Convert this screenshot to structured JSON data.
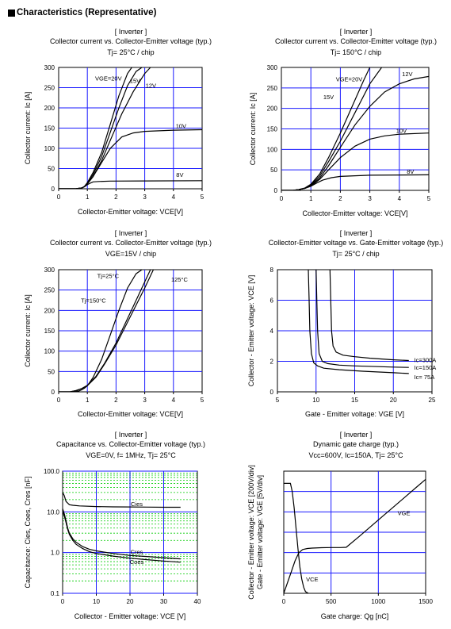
{
  "page_title": "Characteristics (Representative)",
  "chart_data": [
    {
      "type": "line",
      "title_lines": [
        "[ Inverter ]",
        "Collector current vs. Collector-Emitter voltage (typ.)",
        "Tj= 25°C / chip"
      ],
      "xlabel": "Collector-Emitter voltage: VCE[V]",
      "ylabel": "Collector current: Ic [A]",
      "xlim": [
        0,
        5
      ],
      "ylim": [
        0,
        300
      ],
      "xticks": [
        "0",
        "1",
        "2",
        "3",
        "4",
        "5"
      ],
      "yticks": [
        "0",
        "50",
        "100",
        "150",
        "200",
        "250",
        "300"
      ],
      "grid": true,
      "series": [
        {
          "name": "VGE=20V",
          "x": [
            0,
            0.6,
            0.8,
            0.9,
            1.0,
            1.2,
            1.5,
            1.8,
            2.1,
            2.4,
            2.55
          ],
          "y": [
            0,
            0,
            2,
            6,
            15,
            40,
            90,
            160,
            230,
            285,
            300
          ]
        },
        {
          "name": "15V",
          "x": [
            0,
            0.6,
            0.8,
            0.9,
            1.0,
            1.2,
            1.5,
            1.8,
            2.1,
            2.4,
            2.7,
            2.9
          ],
          "y": [
            0,
            0,
            2,
            5,
            13,
            35,
            80,
            140,
            200,
            255,
            290,
            300
          ]
        },
        {
          "name": "12V",
          "x": [
            0,
            0.6,
            0.8,
            0.9,
            1.0,
            1.2,
            1.5,
            1.8,
            2.2,
            2.6,
            3.0,
            3.2
          ],
          "y": [
            0,
            0,
            2,
            5,
            12,
            30,
            70,
            120,
            185,
            240,
            285,
            300
          ]
        },
        {
          "name": "10V",
          "x": [
            0,
            0.6,
            0.8,
            0.9,
            1.0,
            1.2,
            1.5,
            1.8,
            2.2,
            2.6,
            3.0,
            4.0,
            5.0
          ],
          "y": [
            0,
            0,
            2,
            5,
            12,
            30,
            65,
            100,
            128,
            138,
            142,
            145,
            146
          ]
        },
        {
          "name": "8V",
          "x": [
            0,
            0.6,
            0.8,
            0.9,
            1.0,
            1.1,
            1.2,
            1.4,
            1.8,
            3.0,
            5.0
          ],
          "y": [
            0,
            0,
            2,
            5,
            10,
            14,
            17,
            18,
            19,
            19.5,
            20
          ]
        }
      ]
    },
    {
      "type": "line",
      "title_lines": [
        "[ Inverter ]",
        "Collector current vs. Collector-Emitter voltage (typ.)",
        "Tj= 150°C / chip"
      ],
      "xlabel": "Collector-Emitter voltage: VCE[V]",
      "ylabel": "Collector current: Ic [A]",
      "xlim": [
        0,
        5
      ],
      "ylim": [
        0,
        300
      ],
      "xticks": [
        "0",
        "1",
        "2",
        "3",
        "4",
        "5"
      ],
      "yticks": [
        "0",
        "50",
        "100",
        "150",
        "200",
        "250",
        "300"
      ],
      "grid": true,
      "series": [
        {
          "name": "VGE=20V",
          "x": [
            0,
            0.4,
            0.6,
            0.8,
            1.0,
            1.3,
            1.6,
            2.0,
            2.4,
            2.8,
            3.0
          ],
          "y": [
            0,
            0,
            2,
            6,
            15,
            40,
            80,
            140,
            205,
            270,
            300
          ]
        },
        {
          "name": "15V",
          "x": [
            0,
            0.4,
            0.6,
            0.8,
            1.0,
            1.3,
            1.6,
            2.0,
            2.5,
            3.0,
            3.4
          ],
          "y": [
            0,
            0,
            2,
            5,
            13,
            35,
            70,
            120,
            190,
            260,
            300
          ]
        },
        {
          "name": "12V",
          "x": [
            0,
            0.4,
            0.6,
            0.8,
            1.0,
            1.3,
            1.6,
            2.0,
            2.5,
            3.0,
            3.5,
            4.0,
            4.5,
            5.0
          ],
          "y": [
            0,
            0,
            2,
            5,
            12,
            30,
            60,
            105,
            160,
            205,
            240,
            260,
            272,
            278
          ]
        },
        {
          "name": "10V",
          "x": [
            0,
            0.4,
            0.6,
            0.8,
            1.0,
            1.3,
            1.6,
            2.0,
            2.5,
            3.0,
            3.5,
            4.0,
            5.0
          ],
          "y": [
            0,
            0,
            2,
            5,
            11,
            27,
            50,
            80,
            108,
            125,
            133,
            137,
            140
          ]
        },
        {
          "name": "8V",
          "x": [
            0,
            0.4,
            0.6,
            0.8,
            1.0,
            1.2,
            1.4,
            1.7,
            2.0,
            3.0,
            5.0
          ],
          "y": [
            0,
            0,
            2,
            5,
            10,
            18,
            25,
            31,
            34,
            37,
            38
          ]
        }
      ]
    },
    {
      "type": "line",
      "title_lines": [
        "[ Inverter ]",
        "Collector current vs. Collector-Emitter voltage (typ.)",
        "VGE=15V / chip"
      ],
      "xlabel": "Collector-Emitter voltage: VCE[V]",
      "ylabel": "Collector current: Ic [A]",
      "xlim": [
        0,
        5
      ],
      "ylim": [
        0,
        300
      ],
      "xticks": [
        "0",
        "1",
        "2",
        "3",
        "4",
        "5"
      ],
      "yticks": [
        "0",
        "50",
        "100",
        "150",
        "200",
        "250",
        "300"
      ],
      "grid": true,
      "series": [
        {
          "name": "Tj=25°C",
          "x": [
            0,
            0.5,
            0.7,
            0.8,
            0.9,
            1.0,
            1.2,
            1.5,
            1.8,
            2.1,
            2.4,
            2.7,
            2.9
          ],
          "y": [
            0,
            0,
            2,
            5,
            9,
            15,
            35,
            80,
            140,
            200,
            255,
            290,
            300
          ]
        },
        {
          "name": "125°C",
          "x": [
            0,
            0.4,
            0.6,
            0.8,
            1.0,
            1.3,
            1.6,
            2.0,
            2.4,
            2.8,
            3.2
          ],
          "y": [
            0,
            0,
            3,
            8,
            16,
            38,
            70,
            120,
            180,
            240,
            300
          ]
        },
        {
          "name": "Tj=150°C",
          "x": [
            0,
            0.4,
            0.6,
            0.8,
            1.0,
            1.3,
            1.6,
            2.0,
            2.5,
            3.0,
            3.3
          ],
          "y": [
            0,
            0,
            3,
            8,
            15,
            36,
            68,
            115,
            185,
            255,
            300
          ]
        }
      ]
    },
    {
      "type": "line",
      "title_lines": [
        "[ Inverter ]",
        "Collector-Emitter voltage  vs. Gate-Emitter voltage (typ.)",
        "Tj= 25°C / chip"
      ],
      "xlabel": "Gate - Emitter voltage: VGE [V]",
      "ylabel": "Collector - Emitter voltage: VCE [V]",
      "xlim": [
        5,
        25
      ],
      "ylim": [
        0,
        8
      ],
      "xticks": [
        "5",
        "10",
        "15",
        "20",
        "25"
      ],
      "yticks": [
        "0",
        "2",
        "4",
        "6",
        "8"
      ],
      "grid": true,
      "series": [
        {
          "name": "Ic=300A",
          "x": [
            11.8,
            11.9,
            12.0,
            12.2,
            12.6,
            13.5,
            15,
            17,
            20,
            22
          ],
          "y": [
            8,
            6,
            4,
            3,
            2.6,
            2.4,
            2.3,
            2.2,
            2.1,
            2.05
          ]
        },
        {
          "name": "Ic=150A",
          "x": [
            10.0,
            10.1,
            10.2,
            10.4,
            10.8,
            11.5,
            13,
            15,
            18,
            20,
            22
          ],
          "y": [
            8,
            6,
            4,
            2.5,
            2.0,
            1.85,
            1.75,
            1.7,
            1.65,
            1.62,
            1.6
          ]
        },
        {
          "name": "Ic= 75A",
          "x": [
            9.0,
            9.1,
            9.2,
            9.4,
            9.7,
            10.2,
            11,
            13,
            16,
            20,
            22
          ],
          "y": [
            8,
            6,
            4,
            2.5,
            1.9,
            1.7,
            1.55,
            1.45,
            1.35,
            1.25,
            1.2
          ]
        }
      ]
    },
    {
      "type": "line",
      "title_lines": [
        "[ Inverter ]",
        "Capacitance  vs.  Collector-Emitter voltage  (typ.)",
        "VGE=0V,  f= 1MHz,  Tj= 25°C"
      ],
      "xlabel": "Collector - Emitter voltage: VCE [V]",
      "ylabel": "Capacitance: Cies, Coes, Cres [nF]",
      "xlim": [
        0,
        40
      ],
      "ylim": [
        0.1,
        100
      ],
      "yscale": "log",
      "xticks": [
        "0",
        "10",
        "20",
        "30",
        "40"
      ],
      "yticks": [
        "0.1",
        "1.0",
        "10.0",
        "100.0"
      ],
      "grid": true,
      "minor_grid_color": "#00cc00",
      "series": [
        {
          "name": "Cies",
          "x": [
            0,
            0.5,
            1,
            2,
            3,
            5,
            10,
            15,
            20,
            25,
            30,
            35
          ],
          "y": [
            30,
            25,
            18,
            15,
            14.5,
            14,
            13.5,
            13.3,
            13.2,
            13.1,
            13.0,
            13.0
          ]
        },
        {
          "name": "Cres",
          "x": [
            0,
            0.5,
            1,
            1.5,
            2,
            3,
            4,
            6,
            8,
            10,
            15,
            20,
            25,
            30,
            35
          ],
          "y": [
            12,
            9,
            6,
            4,
            3,
            2.2,
            1.8,
            1.4,
            1.2,
            1.1,
            0.95,
            0.85,
            0.8,
            0.75,
            0.7
          ]
        },
        {
          "name": "Coes",
          "x": [
            0,
            0.5,
            1,
            1.5,
            2,
            3,
            4,
            6,
            8,
            10,
            15,
            20,
            25,
            30,
            35
          ],
          "y": [
            10,
            8,
            5.5,
            3.7,
            2.8,
            2.0,
            1.6,
            1.25,
            1.05,
            0.95,
            0.82,
            0.73,
            0.67,
            0.62,
            0.58
          ]
        }
      ]
    },
    {
      "type": "line",
      "title_lines": [
        "[ Inverter ]",
        "Dynamic gate charge  (typ.)",
        "Vcc=600V,   Ic=150A,   Tj= 25°C"
      ],
      "xlabel": "Gate charge: Qg [nC]",
      "ylabel": "Collector - Emitter voltage: VCE [200V/div]   Gate - Emitter voltage: VGE [5V/div]",
      "xlim": [
        0,
        1500
      ],
      "ylim": [
        0,
        6
      ],
      "xticks": [
        "0",
        "500",
        "1000",
        "1500"
      ],
      "yticks": [],
      "grid": true,
      "series": [
        {
          "name": "VGE",
          "x": [
            0,
            60,
            120,
            160,
            200,
            250,
            300,
            400,
            500,
            600,
            660,
            800,
            1000,
            1200,
            1400,
            1500
          ],
          "y": [
            0,
            0.8,
            1.6,
            2.0,
            2.15,
            2.2,
            2.22,
            2.24,
            2.25,
            2.25,
            2.26,
            2.8,
            3.6,
            4.4,
            5.2,
            5.6
          ]
        },
        {
          "name": "VCE",
          "x": [
            0,
            70,
            90,
            110,
            130,
            150,
            170,
            190,
            210,
            230,
            260
          ],
          "y": [
            5.4,
            5.4,
            5.0,
            4.2,
            3.2,
            2.2,
            1.3,
            0.7,
            0.3,
            0.08,
            0
          ]
        }
      ]
    }
  ]
}
